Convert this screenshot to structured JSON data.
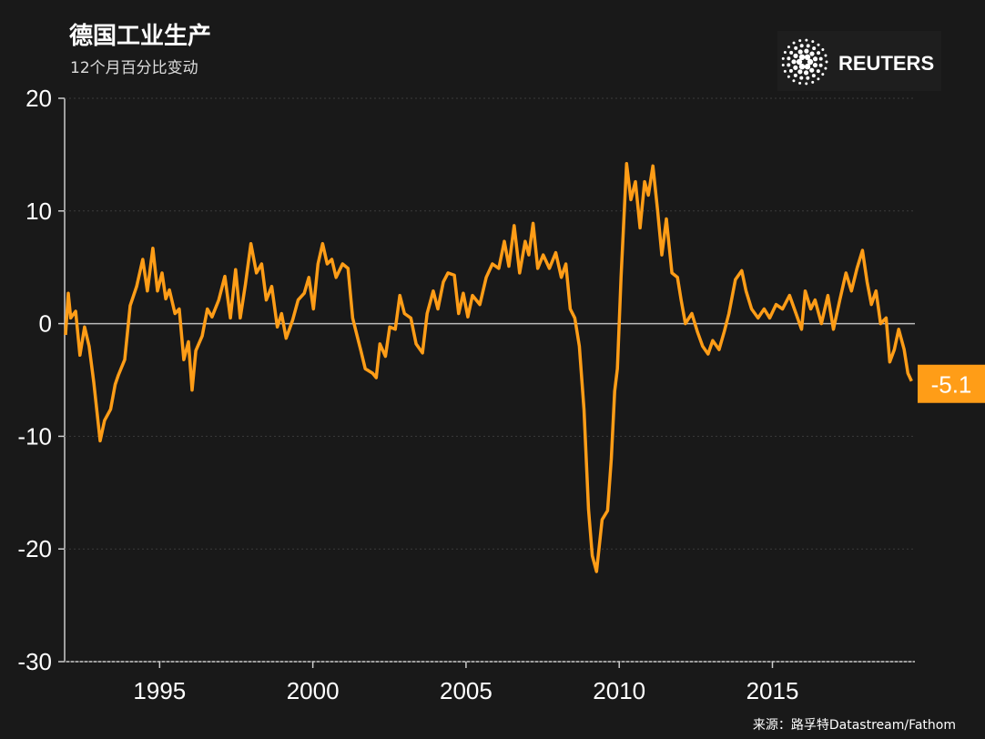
{
  "chart_data": {
    "type": "line",
    "title": "德国工业生产",
    "subtitle": "12个月百分比变动",
    "source": "来源：路孚特Datastream/Fathom",
    "logo": "REUTERS",
    "xlim": [
      1991.9,
      2019.65
    ],
    "xticks": [
      1995,
      2000,
      2005,
      2010,
      2015
    ],
    "ylim": [
      -30,
      20
    ],
    "yticks": [
      -30,
      -20,
      -10,
      0,
      10,
      20
    ],
    "grid": true,
    "x": [
      1991.93,
      1992.02,
      1992.1,
      1992.26,
      1992.4,
      1992.55,
      1992.7,
      1992.85,
      1993.06,
      1993.2,
      1993.4,
      1993.55,
      1993.65,
      1993.86,
      1994.04,
      1994.25,
      1994.45,
      1994.6,
      1994.78,
      1994.93,
      1995.08,
      1995.2,
      1995.32,
      1995.5,
      1995.64,
      1995.79,
      1995.94,
      1996.06,
      1996.18,
      1996.39,
      1996.56,
      1996.71,
      1996.93,
      1997.13,
      1997.31,
      1997.48,
      1997.63,
      1997.8,
      1997.98,
      1998.16,
      1998.33,
      1998.48,
      1998.66,
      1998.84,
      1998.98,
      1999.13,
      1999.34,
      1999.52,
      1999.72,
      1999.87,
      2000.02,
      2000.17,
      2000.32,
      2000.47,
      2000.62,
      2000.76,
      2000.97,
      2001.15,
      2001.3,
      2001.41,
      2001.56,
      2001.71,
      2001.95,
      2002.07,
      2002.19,
      2002.37,
      2002.51,
      2002.69,
      2002.84,
      2002.99,
      2003.2,
      2003.37,
      2003.58,
      2003.73,
      2003.93,
      2004.08,
      2004.26,
      2004.41,
      2004.62,
      2004.76,
      2004.91,
      2005.06,
      2005.21,
      2005.45,
      2005.66,
      2005.86,
      2006.07,
      2006.25,
      2006.4,
      2006.57,
      2006.75,
      2006.93,
      2007.05,
      2007.19,
      2007.34,
      2007.52,
      2007.72,
      2007.93,
      2008.11,
      2008.26,
      2008.4,
      2008.55,
      2008.7,
      2008.85,
      2009.0,
      2009.12,
      2009.26,
      2009.44,
      2009.62,
      2009.74,
      2009.85,
      2009.94,
      2010.06,
      2010.24,
      2010.38,
      2010.53,
      2010.68,
      2010.83,
      2010.95,
      2011.1,
      2011.25,
      2011.39,
      2011.54,
      2011.72,
      2011.9,
      2012.02,
      2012.16,
      2012.37,
      2012.55,
      2012.72,
      2012.9,
      2013.05,
      2013.26,
      2013.43,
      2013.58,
      2013.79,
      2014.0,
      2014.14,
      2014.32,
      2014.53,
      2014.73,
      2014.91,
      2015.12,
      2015.33,
      2015.56,
      2015.77,
      2015.95,
      2016.07,
      2016.25,
      2016.39,
      2016.6,
      2016.81,
      2016.99,
      2017.2,
      2017.4,
      2017.58,
      2017.76,
      2017.94,
      2018.09,
      2018.23,
      2018.38,
      2018.53,
      2018.71,
      2018.83,
      2018.98,
      2019.12,
      2019.3,
      2019.42,
      2019.54
    ],
    "series": [
      {
        "name": "德国工业生产",
        "color": "#ff9d17",
        "values": [
          -1,
          2.7,
          0.5,
          1.1,
          -2.8,
          -0.3,
          -2,
          -5.2,
          -10.4,
          -8.6,
          -7.6,
          -5.4,
          -4.6,
          -3.2,
          1.6,
          3.3,
          5.7,
          2.9,
          6.7,
          2.9,
          4.5,
          2.2,
          3,
          0.9,
          1.3,
          -3.2,
          -1.6,
          -5.9,
          -2.4,
          -1.1,
          1.3,
          0.6,
          2.1,
          4.2,
          0.5,
          4.8,
          0.5,
          3.5,
          7.1,
          4.5,
          5.3,
          2.1,
          3.3,
          -0.3,
          0.9,
          -1.3,
          0.3,
          2.1,
          2.7,
          4.1,
          1.3,
          5.3,
          7.1,
          5.3,
          5.7,
          4.1,
          5.3,
          4.9,
          0.5,
          -0.7,
          -2.3,
          -4,
          -4.4,
          -4.8,
          -1.8,
          -2.9,
          -0.3,
          -0.5,
          2.5,
          0.9,
          0.5,
          -1.8,
          -2.6,
          0.9,
          2.9,
          1.3,
          3.7,
          4.5,
          4.3,
          0.9,
          2.7,
          0.6,
          2.5,
          1.7,
          4.1,
          5.3,
          4.9,
          7.3,
          5.1,
          8.7,
          4.5,
          7.3,
          6.1,
          8.9,
          4.9,
          6.1,
          4.9,
          6.3,
          4.1,
          5.3,
          1.3,
          0.5,
          -2,
          -7.6,
          -16.5,
          -20.6,
          -22,
          -17.4,
          -16.6,
          -12,
          -6,
          -4,
          4.1,
          14.2,
          11,
          12.6,
          8.5,
          12.6,
          11.4,
          14,
          10.1,
          6.1,
          9.3,
          4.5,
          4.1,
          2.1,
          0,
          0.9,
          -0.7,
          -2,
          -2.7,
          -1.5,
          -2.3,
          -0.7,
          0.9,
          3.9,
          4.7,
          2.9,
          1.3,
          0.5,
          1.3,
          0.5,
          1.7,
          1.3,
          2.5,
          0.9,
          -0.5,
          2.9,
          1.3,
          2.1,
          0,
          2.5,
          -0.5,
          2.1,
          4.5,
          2.9,
          4.9,
          6.5,
          3.7,
          1.7,
          2.9,
          0,
          0.5,
          -3.4,
          -2.3,
          -0.5,
          -2.3,
          -4.4,
          -5.1
        ]
      }
    ]
  }
}
